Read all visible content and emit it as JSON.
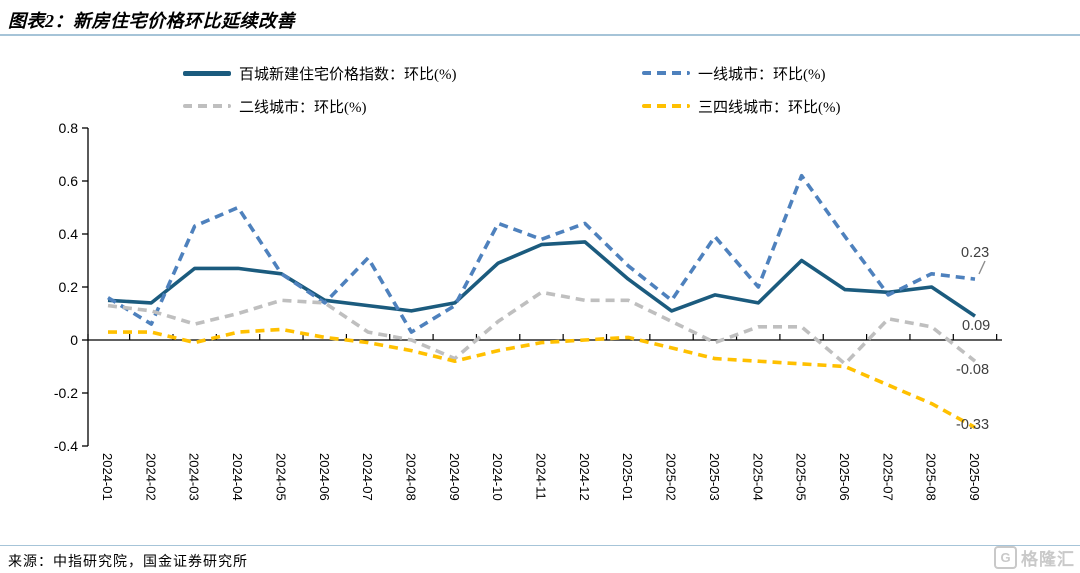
{
  "title": "图表2：新房住宅价格环比延续改善",
  "source": {
    "text": "来源：中指研究院，国金证券研究所"
  },
  "watermark": {
    "text": "格隆汇",
    "icon": "G"
  },
  "colors": {
    "series_baicheng": "#1b5b7e",
    "series_tier1": "#4e81bd",
    "series_tier2": "#bfbfbf",
    "series_tier34": "#ffc000",
    "rule_line": "#a6c4d8",
    "annotation_text": "#3f3f3f",
    "axis": "#000000"
  },
  "legend": {
    "items": [
      {
        "label": "百城新建住宅价格指数：环比(%)",
        "swatch": "solid-navy-line"
      },
      {
        "label": "一线城市：环比(%)",
        "swatch": "dashed-blue-line"
      },
      {
        "label": "二线城市：环比(%)",
        "swatch": "dashed-gray-line"
      },
      {
        "label": "三四线城市：环比(%)",
        "swatch": "dashed-yellow-line"
      }
    ]
  },
  "annotations": [
    {
      "label": "0.23",
      "series": "一线城市：环比(%)",
      "month": "2025-09"
    },
    {
      "label": "0.09",
      "series": "百城新建住宅价格指数：环比(%)",
      "month": "2025-09"
    },
    {
      "label": "-0.08",
      "series": "二线城市：环比(%)",
      "month": "2025-09"
    },
    {
      "label": "-0.33",
      "series": "三四线城市：环比(%)",
      "month": "2025-09"
    }
  ],
  "chart_data": {
    "type": "line",
    "title": "",
    "xlabel": "",
    "ylabel": "",
    "ylim": [
      -0.4,
      0.8
    ],
    "ytick_step": 0.2,
    "grid": false,
    "legend_position": "top",
    "yticks": [
      "0.8",
      "0.6",
      "0.4",
      "0.2",
      "0",
      "-0.2",
      "-0.4"
    ],
    "x": [
      "2024-01",
      "2024-02",
      "2024-03",
      "2024-04",
      "2024-05",
      "2024-06",
      "2024-07",
      "2024-08",
      "2024-09",
      "2024-10",
      "2024-11",
      "2024-12",
      "2025-01",
      "2025-02",
      "2025-03",
      "2025-04",
      "2025-05",
      "2025-06",
      "2025-07",
      "2025-08",
      "2025-09"
    ],
    "series": [
      {
        "name": "百城新建住宅价格指数：环比(%)",
        "color": "#1b5b7e",
        "dashed": false,
        "values": [
          0.15,
          0.14,
          0.27,
          0.27,
          0.25,
          0.15,
          0.13,
          0.11,
          0.14,
          0.29,
          0.36,
          0.37,
          0.23,
          0.11,
          0.17,
          0.14,
          0.3,
          0.19,
          0.18,
          0.2,
          0.09
        ]
      },
      {
        "name": "一线城市：环比(%)",
        "color": "#4e81bd",
        "dashed": true,
        "values": [
          0.16,
          0.06,
          0.43,
          0.5,
          0.25,
          0.14,
          0.31,
          0.03,
          0.13,
          0.44,
          0.38,
          0.44,
          0.28,
          0.15,
          0.39,
          0.2,
          0.62,
          0.39,
          0.17,
          0.25,
          0.23
        ]
      },
      {
        "name": "二线城市：环比(%)",
        "color": "#bfbfbf",
        "dashed": true,
        "values": [
          0.13,
          0.11,
          0.06,
          0.1,
          0.15,
          0.14,
          0.03,
          0.0,
          -0.07,
          0.07,
          0.18,
          0.15,
          0.15,
          0.07,
          -0.01,
          0.05,
          0.05,
          -0.09,
          0.08,
          0.05,
          -0.08
        ]
      },
      {
        "name": "三四线城市：环比(%)",
        "color": "#ffc000",
        "dashed": true,
        "values": [
          0.03,
          0.03,
          -0.01,
          0.03,
          0.04,
          0.01,
          -0.01,
          -0.04,
          -0.08,
          -0.04,
          -0.01,
          0.0,
          0.01,
          -0.03,
          -0.07,
          -0.08,
          -0.09,
          -0.1,
          -0.17,
          -0.24,
          -0.33
        ]
      }
    ]
  }
}
